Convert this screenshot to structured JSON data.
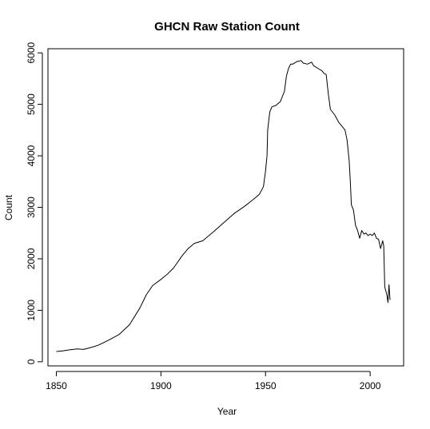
{
  "chart_data": {
    "type": "line",
    "title": "GHCN Raw Station Count",
    "xlabel": "Year",
    "ylabel": "Count",
    "xlim": [
      1846,
      2016
    ],
    "ylim": [
      -80,
      6080
    ],
    "xticks": [
      1850,
      1900,
      1950,
      2000
    ],
    "yticks": [
      0,
      1000,
      2000,
      3000,
      4000,
      5000,
      6000
    ],
    "grid": false,
    "legend": "none",
    "color": "#000000",
    "series": [
      {
        "x": [
          1850,
          1853,
          1856,
          1860,
          1863,
          1866,
          1870,
          1875,
          1880,
          1885,
          1890,
          1893,
          1896,
          1900,
          1903,
          1906,
          1910,
          1913,
          1916,
          1920,
          1925,
          1930,
          1935,
          1940,
          1945,
          1947,
          1949,
          1950,
          1950.7,
          1951,
          1952,
          1953,
          1955,
          1957,
          1959,
          1960,
          1961,
          1962,
          1963,
          1965,
          1967,
          1968,
          1970,
          1972,
          1973,
          1975,
          1977,
          1978,
          1979,
          1980,
          1981,
          1983,
          1985,
          1987,
          1988,
          1989,
          1990,
          1990.5,
          1991,
          1992,
          1993,
          1994,
          1995,
          1996,
          1997,
          1998,
          1999,
          2000,
          2001,
          2002,
          2003,
          2004,
          2005,
          2006,
          2006.5,
          2007,
          2008,
          2008.5,
          2009,
          2009.5
        ],
        "y": [
          200,
          210,
          230,
          250,
          240,
          270,
          320,
          420,
          530,
          720,
          1050,
          1300,
          1480,
          1600,
          1700,
          1820,
          2050,
          2200,
          2300,
          2350,
          2520,
          2700,
          2880,
          3020,
          3180,
          3250,
          3400,
          3700,
          4000,
          4500,
          4850,
          4950,
          4980,
          5050,
          5250,
          5550,
          5700,
          5780,
          5780,
          5830,
          5850,
          5800,
          5780,
          5820,
          5750,
          5700,
          5650,
          5600,
          5580,
          5200,
          4900,
          4800,
          4650,
          4550,
          4500,
          4300,
          3900,
          3500,
          3050,
          2950,
          2650,
          2550,
          2400,
          2550,
          2480,
          2500,
          2450,
          2480,
          2450,
          2500,
          2400,
          2380,
          2200,
          2350,
          2250,
          1450,
          1300,
          1150,
          1500,
          1200
        ]
      }
    ]
  }
}
